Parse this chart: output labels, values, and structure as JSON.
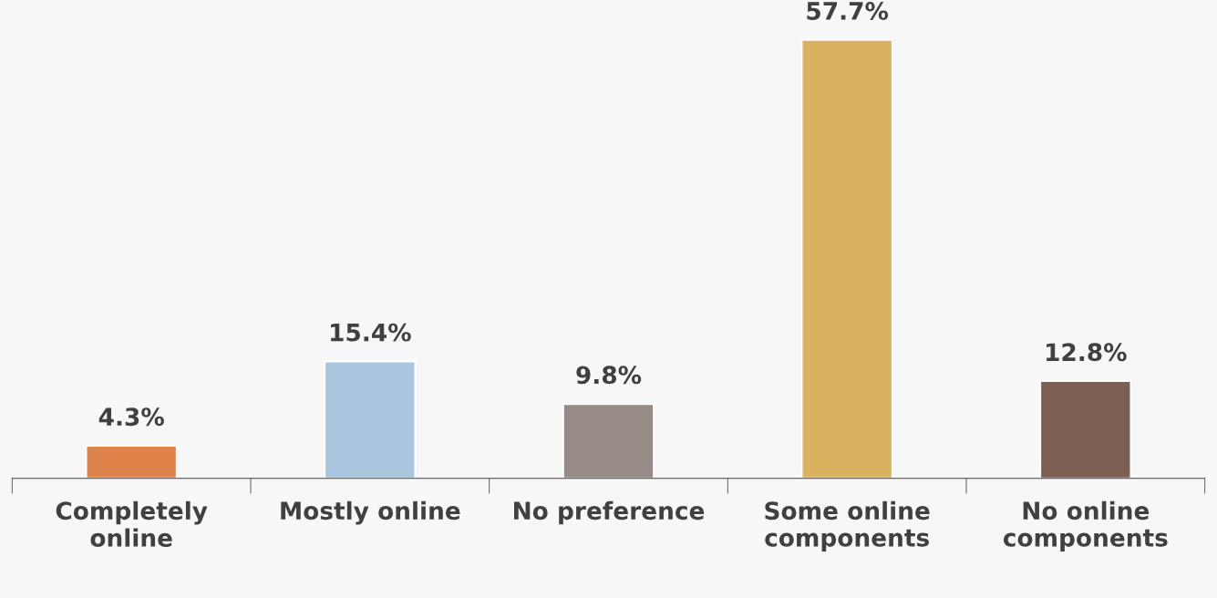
{
  "chart_data": {
    "type": "bar",
    "categories": [
      "Completely\nonline",
      "Mostly online",
      "No preference",
      "Some online\ncomponents",
      "No online\ncomponents"
    ],
    "values": [
      4.3,
      15.4,
      9.8,
      57.7,
      12.8
    ],
    "colors": [
      "#e0834a",
      "#a9c6de",
      "#978b88",
      "#d8b25e",
      "#7a5f52"
    ],
    "value_labels": [
      "4.3%",
      "15.4%",
      "9.8%",
      "57.7%",
      "12.8%"
    ],
    "tick_labels": "x",
    "grid": false,
    "legend": false
  }
}
